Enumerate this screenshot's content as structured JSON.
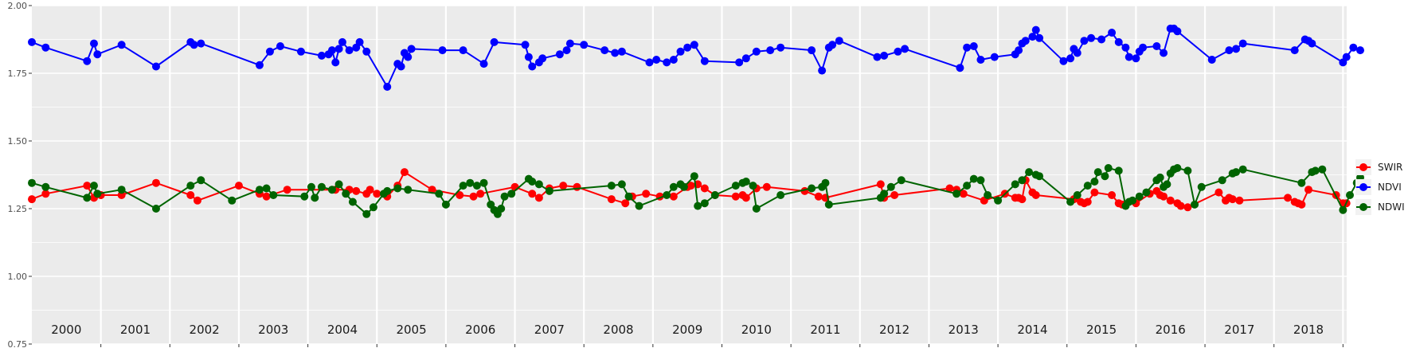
{
  "chart_data": {
    "type": "line",
    "title": "",
    "xlabel": "",
    "ylabel": "",
    "x_axis": "time (years 2000-2018)",
    "ylim": [
      0.75,
      2.0
    ],
    "y_ticks": [
      "0.75",
      "1.00",
      "1.25",
      "1.50",
      "1.75",
      "2.00"
    ],
    "grid": true,
    "year_labels": [
      "2000",
      "2001",
      "2002",
      "2003",
      "2004",
      "2005",
      "2006",
      "2007",
      "2008",
      "2009",
      "2010",
      "2011",
      "2012",
      "2013",
      "2014",
      "2015",
      "2016",
      "2017",
      "2018"
    ],
    "legend_position": "right",
    "series": [
      {
        "name": "SWIR",
        "color": "#ff0000",
        "x": [
          2000.0,
          2000.2,
          2000.8,
          2000.9,
          2001.0,
          2001.3,
          2001.8,
          2002.3,
          2002.4,
          2003.0,
          2003.3,
          2003.4,
          2003.7,
          2004.4,
          2004.6,
          2004.7,
          2004.85,
          2004.9,
          2005.0,
          2005.15,
          2005.3,
          2005.4,
          2005.8,
          2006.2,
          2006.4,
          2006.5,
          2007.0,
          2007.25,
          2007.35,
          2007.5,
          2007.7,
          2007.9,
          2008.4,
          2008.6,
          2008.7,
          2008.9,
          2009.1,
          2009.3,
          2009.5,
          2009.55,
          2009.65,
          2009.75,
          2009.9,
          2010.2,
          2010.3,
          2010.35,
          2010.5,
          2010.65,
          2011.2,
          2011.4,
          2011.5,
          2012.3,
          2012.35,
          2012.5,
          2013.3,
          2013.4,
          2013.5,
          2013.8,
          2014.1,
          2014.25,
          2014.3,
          2014.35,
          2014.4,
          2014.5,
          2014.55,
          2015.1,
          2015.2,
          2015.25,
          2015.3,
          2015.4,
          2015.65,
          2015.75,
          2015.8,
          2016.0,
          2016.2,
          2016.3,
          2016.35,
          2016.4,
          2016.5,
          2016.6,
          2016.65,
          2016.75,
          2017.2,
          2017.3,
          2017.35,
          2017.4,
          2017.5,
          2018.2,
          2018.3,
          2018.35,
          2018.4,
          2018.5,
          2018.9,
          2019.0,
          2019.05
        ],
        "values": [
          1.285,
          1.305,
          1.335,
          1.29,
          1.3,
          1.3,
          1.345,
          1.3,
          1.28,
          1.335,
          1.305,
          1.295,
          1.32,
          1.32,
          1.32,
          1.315,
          1.305,
          1.32,
          1.305,
          1.295,
          1.335,
          1.385,
          1.32,
          1.3,
          1.295,
          1.305,
          1.33,
          1.305,
          1.29,
          1.325,
          1.335,
          1.33,
          1.285,
          1.27,
          1.295,
          1.305,
          1.295,
          1.295,
          1.33,
          1.335,
          1.34,
          1.325,
          1.3,
          1.295,
          1.3,
          1.29,
          1.325,
          1.33,
          1.315,
          1.295,
          1.29,
          1.34,
          1.29,
          1.3,
          1.325,
          1.32,
          1.305,
          1.28,
          1.305,
          1.29,
          1.29,
          1.285,
          1.355,
          1.31,
          1.3,
          1.285,
          1.275,
          1.27,
          1.275,
          1.31,
          1.3,
          1.27,
          1.265,
          1.27,
          1.305,
          1.315,
          1.3,
          1.295,
          1.28,
          1.27,
          1.26,
          1.255,
          1.31,
          1.28,
          1.29,
          1.285,
          1.28,
          1.29,
          1.275,
          1.27,
          1.265,
          1.32,
          1.3,
          1.27,
          1.27
        ]
      },
      {
        "name": "NDVI",
        "color": "#0000ff",
        "x": [
          2000.0,
          2000.2,
          2000.8,
          2000.9,
          2000.95,
          2001.3,
          2001.8,
          2002.3,
          2002.35,
          2002.45,
          2003.3,
          2003.45,
          2003.6,
          2003.9,
          2004.2,
          2004.3,
          2004.35,
          2004.4,
          2004.45,
          2004.5,
          2004.6,
          2004.7,
          2004.75,
          2004.85,
          2005.15,
          2005.3,
          2005.35,
          2005.4,
          2005.45,
          2005.5,
          2005.95,
          2006.25,
          2006.55,
          2006.7,
          2007.15,
          2007.2,
          2007.25,
          2007.35,
          2007.4,
          2007.65,
          2007.75,
          2007.8,
          2008.0,
          2008.3,
          2008.45,
          2008.55,
          2008.95,
          2009.05,
          2009.2,
          2009.3,
          2009.4,
          2009.5,
          2009.6,
          2009.75,
          2010.25,
          2010.35,
          2010.5,
          2010.7,
          2010.85,
          2011.3,
          2011.45,
          2011.55,
          2011.6,
          2011.7,
          2012.25,
          2012.35,
          2012.55,
          2012.65,
          2013.45,
          2013.55,
          2013.65,
          2013.75,
          2013.95,
          2014.25,
          2014.3,
          2014.35,
          2014.4,
          2014.5,
          2014.55,
          2014.6,
          2014.95,
          2015.05,
          2015.1,
          2015.15,
          2015.25,
          2015.35,
          2015.5,
          2015.65,
          2015.75,
          2015.85,
          2015.9,
          2016.0,
          2016.05,
          2016.1,
          2016.3,
          2016.4,
          2016.5,
          2016.55,
          2016.6,
          2017.1,
          2017.35,
          2017.45,
          2017.55,
          2018.3,
          2018.45,
          2018.5,
          2018.55,
          2019.0,
          2019.05,
          2019.15,
          2019.25
        ],
        "values": [
          1.865,
          1.845,
          1.795,
          1.86,
          1.82,
          1.855,
          1.775,
          1.865,
          1.855,
          1.86,
          1.78,
          1.83,
          1.85,
          1.83,
          1.815,
          1.82,
          1.835,
          1.79,
          1.84,
          1.865,
          1.835,
          1.845,
          1.865,
          1.83,
          1.7,
          1.785,
          1.775,
          1.825,
          1.81,
          1.84,
          1.835,
          1.835,
          1.785,
          1.865,
          1.855,
          1.81,
          1.775,
          1.79,
          1.805,
          1.82,
          1.835,
          1.86,
          1.855,
          1.835,
          1.825,
          1.83,
          1.79,
          1.8,
          1.79,
          1.8,
          1.83,
          1.845,
          1.855,
          1.795,
          1.79,
          1.805,
          1.83,
          1.835,
          1.845,
          1.835,
          1.76,
          1.845,
          1.855,
          1.87,
          1.81,
          1.815,
          1.83,
          1.84,
          1.77,
          1.845,
          1.85,
          1.8,
          1.81,
          1.82,
          1.835,
          1.86,
          1.87,
          1.885,
          1.91,
          1.88,
          1.795,
          1.805,
          1.84,
          1.825,
          1.87,
          1.88,
          1.875,
          1.9,
          1.865,
          1.845,
          1.81,
          1.805,
          1.83,
          1.845,
          1.85,
          1.825,
          1.915,
          1.915,
          1.905,
          1.8,
          1.835,
          1.84,
          1.86,
          1.835,
          1.875,
          1.87,
          1.86,
          1.79,
          1.81,
          1.845,
          1.835
        ]
      },
      {
        "name": "NDWI",
        "color": "#006400",
        "x": [
          2000.0,
          2000.2,
          2000.8,
          2000.9,
          2000.95,
          2001.3,
          2001.8,
          2002.3,
          2002.45,
          2002.9,
          2003.3,
          2003.4,
          2003.5,
          2003.95,
          2004.05,
          2004.1,
          2004.2,
          2004.35,
          2004.45,
          2004.55,
          2004.65,
          2004.85,
          2004.95,
          2005.1,
          2005.15,
          2005.3,
          2005.45,
          2005.9,
          2006.0,
          2006.25,
          2006.35,
          2006.45,
          2006.55,
          2006.65,
          2006.7,
          2006.75,
          2006.8,
          2006.85,
          2006.95,
          2007.2,
          2007.25,
          2007.35,
          2007.5,
          2008.4,
          2008.55,
          2008.65,
          2008.8,
          2009.2,
          2009.3,
          2009.4,
          2009.45,
          2009.6,
          2009.65,
          2009.75,
          2009.9,
          2010.2,
          2010.3,
          2010.35,
          2010.45,
          2010.5,
          2010.85,
          2011.3,
          2011.45,
          2011.5,
          2011.55,
          2012.3,
          2012.35,
          2012.45,
          2012.6,
          2013.4,
          2013.55,
          2013.65,
          2013.75,
          2013.85,
          2014.0,
          2014.25,
          2014.35,
          2014.45,
          2014.55,
          2014.6,
          2015.05,
          2015.15,
          2015.3,
          2015.4,
          2015.45,
          2015.55,
          2015.6,
          2015.75,
          2015.85,
          2015.9,
          2015.95,
          2016.05,
          2016.15,
          2016.3,
          2016.35,
          2016.4,
          2016.45,
          2016.5,
          2016.55,
          2016.6,
          2016.75,
          2016.85,
          2016.95,
          2017.25,
          2017.4,
          2017.45,
          2017.55,
          2018.4,
          2018.55,
          2018.6,
          2018.7,
          2019.0,
          2019.1,
          2019.2,
          2019.25
        ],
        "values": [
          1.345,
          1.33,
          1.29,
          1.335,
          1.305,
          1.32,
          1.25,
          1.335,
          1.355,
          1.28,
          1.32,
          1.325,
          1.3,
          1.295,
          1.33,
          1.29,
          1.33,
          1.32,
          1.34,
          1.305,
          1.275,
          1.23,
          1.255,
          1.305,
          1.315,
          1.325,
          1.32,
          1.305,
          1.265,
          1.335,
          1.345,
          1.335,
          1.345,
          1.265,
          1.245,
          1.23,
          1.25,
          1.295,
          1.305,
          1.36,
          1.35,
          1.34,
          1.315,
          1.335,
          1.34,
          1.295,
          1.26,
          1.3,
          1.33,
          1.34,
          1.33,
          1.37,
          1.26,
          1.27,
          1.3,
          1.335,
          1.345,
          1.35,
          1.335,
          1.25,
          1.3,
          1.325,
          1.33,
          1.345,
          1.265,
          1.29,
          1.305,
          1.33,
          1.355,
          1.305,
          1.335,
          1.36,
          1.355,
          1.3,
          1.28,
          1.34,
          1.355,
          1.385,
          1.375,
          1.37,
          1.275,
          1.3,
          1.335,
          1.35,
          1.385,
          1.37,
          1.4,
          1.39,
          1.26,
          1.275,
          1.28,
          1.295,
          1.31,
          1.355,
          1.365,
          1.33,
          1.34,
          1.38,
          1.395,
          1.4,
          1.39,
          1.265,
          1.33,
          1.355,
          1.38,
          1.385,
          1.395,
          1.345,
          1.385,
          1.39,
          1.395,
          1.245,
          1.3,
          1.345,
          1.365
        ]
      }
    ]
  }
}
